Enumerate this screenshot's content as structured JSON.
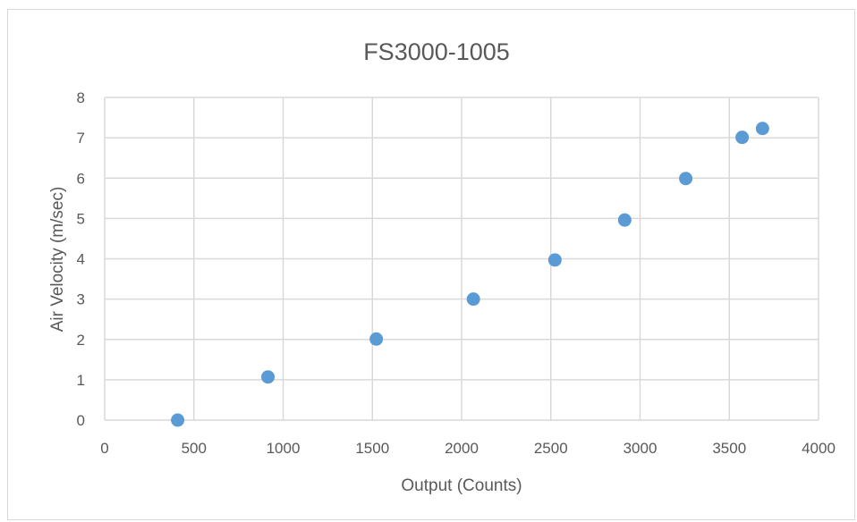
{
  "chart_data": {
    "type": "scatter",
    "title": "FS3000-1005",
    "xlabel": "Output (Counts)",
    "ylabel": "Air Velocity (m/sec)",
    "xlim": [
      0,
      4000
    ],
    "ylim": [
      0,
      8
    ],
    "xticks": [
      0,
      500,
      1000,
      1500,
      2000,
      2500,
      3000,
      3500,
      4000
    ],
    "yticks": [
      0,
      1,
      2,
      3,
      4,
      5,
      6,
      7,
      8
    ],
    "grid": true,
    "legend": "none",
    "color": "#5b9bd5",
    "series": [
      {
        "points": [
          [
            409,
            0
          ],
          [
            915,
            1.07
          ],
          [
            1522,
            2.01
          ],
          [
            2066,
            3.0
          ],
          [
            2523,
            3.97
          ],
          [
            2914,
            4.96
          ],
          [
            3256,
            5.99
          ],
          [
            3572,
            7.01
          ],
          [
            3686,
            7.23
          ]
        ]
      }
    ]
  }
}
